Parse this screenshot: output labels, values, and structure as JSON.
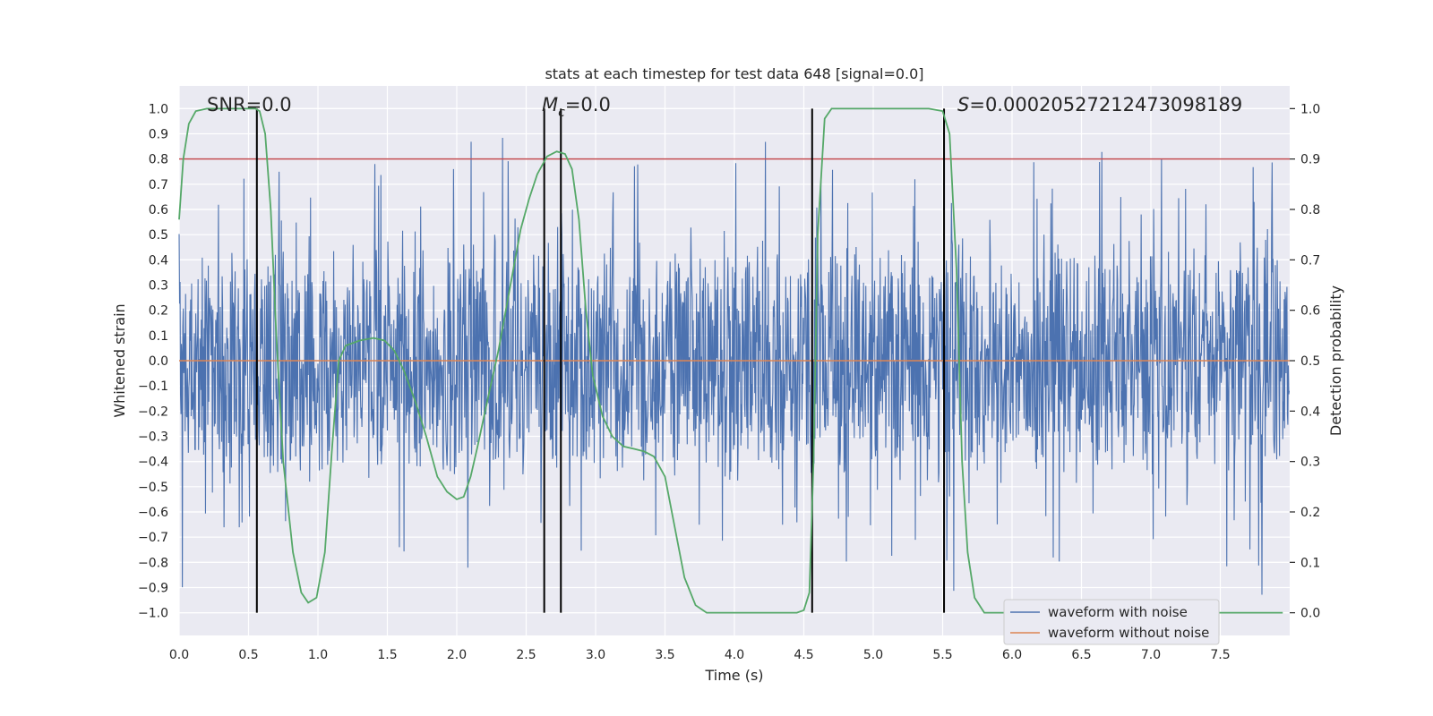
{
  "chart_data": {
    "type": "line",
    "title": "stats at each timestep for test data 648 [signal=0.0]",
    "xlabel": "Time (s)",
    "ylabel": "Whitened strain",
    "y2label": "Detection probability",
    "xlim": [
      0.0,
      8.0
    ],
    "ylim": [
      -1.09,
      1.09
    ],
    "y2lim": [
      -0.045,
      1.045
    ],
    "xticks": [
      0.0,
      0.5,
      1.0,
      1.5,
      2.0,
      2.5,
      3.0,
      3.5,
      4.0,
      4.5,
      5.0,
      5.5,
      6.0,
      6.5,
      7.0,
      7.5
    ],
    "xtick_labels": [
      "0.0",
      "0.5",
      "1.0",
      "1.5",
      "2.0",
      "2.5",
      "3.0",
      "3.5",
      "4.0",
      "4.5",
      "5.0",
      "5.5",
      "6.0",
      "6.5",
      "7.0",
      "7.5"
    ],
    "yticks": [
      -1.0,
      -0.9,
      -0.8,
      -0.7,
      -0.6,
      -0.5,
      -0.4,
      -0.3,
      -0.2,
      -0.1,
      0.0,
      0.1,
      0.2,
      0.3,
      0.4,
      0.5,
      0.6,
      0.7,
      0.8,
      0.9,
      1.0
    ],
    "ytick_labels": [
      "−1.0",
      "−0.9",
      "−0.8",
      "−0.7",
      "−0.6",
      "−0.5",
      "−0.4",
      "−0.3",
      "−0.2",
      "−0.1",
      "0.0",
      "0.1",
      "0.2",
      "0.3",
      "0.4",
      "0.5",
      "0.6",
      "0.7",
      "0.8",
      "0.9",
      "1.0"
    ],
    "y2ticks": [
      0.0,
      0.1,
      0.2,
      0.3,
      0.4,
      0.5,
      0.6,
      0.7,
      0.8,
      0.9,
      1.0
    ],
    "y2tick_labels": [
      "0.0",
      "0.1",
      "0.2",
      "0.3",
      "0.4",
      "0.5",
      "0.6",
      "0.7",
      "0.8",
      "0.9",
      "1.0"
    ],
    "grid": true,
    "legend_position": "lower-right",
    "series": [
      {
        "name": "waveform with noise",
        "color": "#4c72b0",
        "axis": "left",
        "kind": "noise",
        "typical_amplitude": 0.4,
        "peak_amplitude": 0.94
      },
      {
        "name": "waveform without noise",
        "color": "#dd8452",
        "axis": "left",
        "values_const": 0.0
      },
      {
        "name": "",
        "color": "#55a868",
        "axis": "right",
        "x": [
          0.0,
          0.03,
          0.07,
          0.12,
          0.2,
          0.3,
          0.4,
          0.5,
          0.55,
          0.58,
          0.62,
          0.66,
          0.7,
          0.75,
          0.82,
          0.88,
          0.93,
          0.99,
          1.05,
          1.1,
          1.15,
          1.2,
          1.3,
          1.4,
          1.48,
          1.55,
          1.62,
          1.7,
          1.78,
          1.86,
          1.93,
          2.0,
          2.05,
          2.1,
          2.15,
          2.22,
          2.3,
          2.38,
          2.46,
          2.52,
          2.58,
          2.65,
          2.72,
          2.78,
          2.83,
          2.88,
          2.93,
          2.98,
          3.05,
          3.12,
          3.2,
          3.28,
          3.35,
          3.42,
          3.5,
          3.57,
          3.64,
          3.72,
          3.8,
          3.9,
          4.1,
          4.3,
          4.45,
          4.5,
          4.54,
          4.57,
          4.6,
          4.65,
          4.7,
          4.8,
          5.0,
          5.2,
          5.4,
          5.5,
          5.55,
          5.6,
          5.64,
          5.68,
          5.73,
          5.8,
          6.0,
          6.5,
          7.0,
          7.5,
          7.95
        ],
        "values": [
          0.78,
          0.9,
          0.97,
          0.995,
          1.0,
          1.0,
          1.0,
          1.0,
          1.0,
          0.995,
          0.95,
          0.8,
          0.55,
          0.3,
          0.12,
          0.04,
          0.02,
          0.03,
          0.12,
          0.32,
          0.5,
          0.53,
          0.54,
          0.545,
          0.54,
          0.52,
          0.48,
          0.42,
          0.35,
          0.27,
          0.24,
          0.225,
          0.23,
          0.27,
          0.33,
          0.42,
          0.52,
          0.64,
          0.76,
          0.82,
          0.87,
          0.905,
          0.915,
          0.91,
          0.88,
          0.78,
          0.6,
          0.47,
          0.39,
          0.35,
          0.33,
          0.325,
          0.32,
          0.31,
          0.27,
          0.17,
          0.07,
          0.015,
          0.0,
          0.0,
          0.0,
          0.0,
          0.0,
          0.005,
          0.04,
          0.3,
          0.75,
          0.98,
          1.0,
          1.0,
          1.0,
          1.0,
          1.0,
          0.995,
          0.95,
          0.68,
          0.3,
          0.12,
          0.03,
          0.0,
          0.0,
          0.0,
          0.0,
          0.0,
          0.0
        ]
      },
      {
        "name": "",
        "color": "#c44e52",
        "axis": "left",
        "kind": "threshold",
        "y": 0.8
      }
    ],
    "vlines": [
      0.56,
      2.63,
      2.75,
      4.56,
      5.51
    ],
    "annotations": [
      {
        "text": "SNR=0.0",
        "x": 0.2,
        "y": 1.02
      },
      {
        "text_html": "M",
        "sub": "c",
        "suffix": "=0.0",
        "x": 2.6,
        "y": 1.02
      },
      {
        "text_html": "S",
        "suffix": "=0.0002052721247309818​9",
        "x": 5.6,
        "y": 1.02
      }
    ]
  },
  "annotation_texts": {
    "snr": "SNR=0.0",
    "mc_symbol": "M",
    "mc_sub": "c",
    "mc_value": "=0.0",
    "s_symbol": "S",
    "s_value": "=0.00020527212473098189"
  },
  "legend": {
    "noise_label": "waveform with noise",
    "clean_label": "waveform without noise"
  }
}
